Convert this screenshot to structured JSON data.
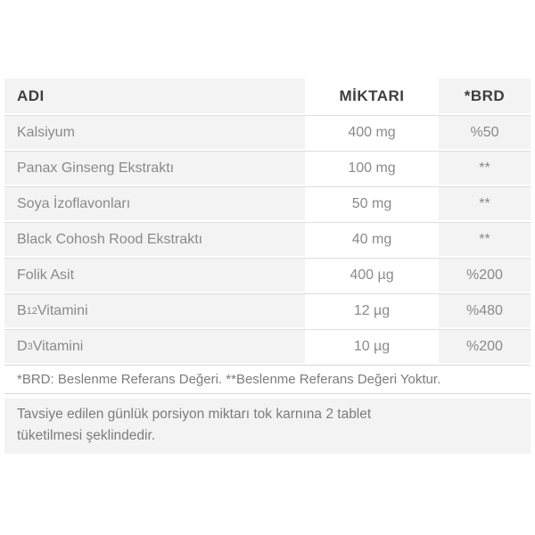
{
  "table": {
    "headers": {
      "name": "ADI",
      "amount": "MİKTARI",
      "brd": "*BRD"
    },
    "rows": [
      {
        "name": [
          {
            "t": "Kalsiyum"
          }
        ],
        "amount": "400 mg",
        "brd": "%50"
      },
      {
        "name": [
          {
            "t": "Panax Ginseng Ekstraktı"
          }
        ],
        "amount": "100 mg",
        "brd": "**"
      },
      {
        "name": [
          {
            "t": "Soya İzoflavonları"
          }
        ],
        "amount": "50 mg",
        "brd": "**"
      },
      {
        "name": [
          {
            "t": "Black Cohosh Rood Ekstraktı"
          }
        ],
        "amount": "40 mg",
        "brd": "**"
      },
      {
        "name": [
          {
            "t": "Folik Asit"
          }
        ],
        "amount": "400 µg",
        "brd": "%200"
      },
      {
        "name": [
          {
            "t": "B"
          },
          {
            "t": "12",
            "sub": true
          },
          {
            "t": " Vitamini"
          }
        ],
        "amount": "12 µg",
        "brd": "%480"
      },
      {
        "name": [
          {
            "t": "D"
          },
          {
            "t": "3",
            "sub": true
          },
          {
            "t": " Vitamini"
          }
        ],
        "amount": "10 µg",
        "brd": "%200"
      }
    ]
  },
  "notes": {
    "brd_note": "*BRD: Beslenme Referans Değeri. **Beslenme Referans Değeri Yoktur.",
    "usage_note": "Tavsiye edilen günlük porsiyon miktarı tok karnına 2 tablet tüketilmesi şeklindedir."
  },
  "colors": {
    "row_background": "#f3f3f3",
    "header_text": "#3e3e3e",
    "data_text": "#8a8a8a",
    "note_text": "#7c7c7c",
    "border": "#dedede",
    "page_background": "#ffffff"
  }
}
